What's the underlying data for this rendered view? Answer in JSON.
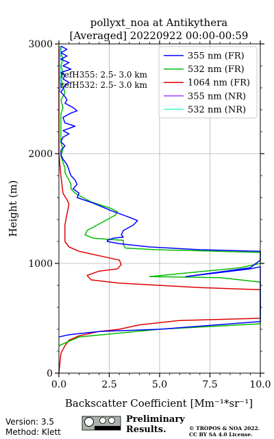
{
  "chart_data": {
    "type": "line",
    "title": "pollyxt_noa at Antikythera",
    "subtitle": "[Averaged] 20220922 00:00-00:59",
    "xlabel": "Backscatter Coefficient [Mm⁻¹*sr⁻¹]",
    "ylabel": "Height (m)",
    "xlim": [
      0,
      10
    ],
    "ylim": [
      0,
      3000
    ],
    "xticks": [
      "0.0",
      "2.5",
      "5.0",
      "7.5",
      "10.0"
    ],
    "yticks": [
      "0",
      "1000",
      "2000",
      "3000"
    ],
    "xtick_values": [
      0,
      2.5,
      5,
      7.5,
      10
    ],
    "ytick_values": [
      0,
      1000,
      2000,
      3000
    ],
    "grid": true,
    "legend_position": "top-right",
    "annotations": [
      "refH355:  2.5- 3.0 km",
      "refH532:  2.5- 3.0 km"
    ],
    "series": [
      {
        "name": "355 nm (FR)",
        "color": "#0000ff",
        "x": [
          0.1,
          0.4,
          0.1,
          0.4,
          0.1,
          0.5,
          0.2,
          0.6,
          0.1,
          0.3,
          0.2,
          0.5,
          0.3,
          0.2,
          0.1,
          0.3,
          0.4,
          0.3,
          0.7,
          0.9,
          0.6,
          0.2,
          0.3,
          0.8,
          0.2,
          0.5,
          0.2,
          0.1,
          0.3,
          0.1,
          0.1,
          0.2,
          0.4,
          0.5,
          0.6,
          0.8,
          0.9,
          0.7,
          1.0,
          0.9,
          1.7,
          2.6,
          3.5,
          3.9,
          3.7,
          3.2,
          3.1,
          3.2,
          2.7,
          2.4,
          2.4,
          3.0,
          4.5,
          7.0,
          10.0,
          10.0,
          9.5,
          6.3,
          9.5,
          10.0,
          10.0,
          10.0,
          10.0,
          10.0,
          5.0,
          2.0,
          0.5,
          0.0
        ],
        "y": [
          2980,
          2950,
          2920,
          2890,
          2860,
          2830,
          2800,
          2770,
          2740,
          2710,
          2680,
          2650,
          2620,
          2590,
          2560,
          2520,
          2490,
          2460,
          2420,
          2390,
          2370,
          2330,
          2280,
          2250,
          2210,
          2180,
          2150,
          2110,
          2070,
          2030,
          1990,
          1950,
          1900,
          1850,
          1800,
          1760,
          1720,
          1680,
          1640,
          1600,
          1550,
          1480,
          1420,
          1390,
          1350,
          1300,
          1260,
          1240,
          1230,
          1210,
          1200,
          1180,
          1150,
          1125,
          1110,
          1030,
          960,
          880,
          950,
          970,
          920,
          880,
          850,
          470,
          400,
          380,
          350,
          330
        ]
      },
      {
        "name": "532 nm (FR)",
        "color": "#00bb00",
        "x": [
          0.1,
          0.1,
          0.2,
          0.1,
          0.2,
          0.1,
          0.2,
          0.3,
          0.1,
          0.2,
          0.1,
          0.1,
          0.1,
          0.1,
          0.1,
          0.2,
          0.1,
          0.2,
          0.3,
          0.3,
          0.4,
          0.5,
          0.6,
          0.6,
          0.8,
          1.6,
          2.6,
          2.9,
          2.8,
          1.9,
          1.4,
          1.3,
          1.7,
          3.2,
          3.2,
          3.3,
          4.8,
          7.0,
          10.0,
          10.0,
          9.0,
          4.5,
          8.0,
          10.0,
          10.0,
          10.0,
          10.0,
          10.0,
          5.0,
          1.0,
          0.0
        ],
        "y": [
          2980,
          2920,
          2860,
          2800,
          2740,
          2680,
          2620,
          2550,
          2490,
          2420,
          2360,
          2300,
          2230,
          2160,
          2100,
          2040,
          1980,
          1920,
          1870,
          1830,
          1790,
          1760,
          1720,
          1680,
          1640,
          1560,
          1500,
          1470,
          1440,
          1350,
          1300,
          1260,
          1230,
          1210,
          1170,
          1140,
          1125,
          1115,
          1100,
          1000,
          960,
          880,
          870,
          830,
          800,
          680,
          540,
          450,
          400,
          330,
          250
        ]
      },
      {
        "name": "1064 nm (FR)",
        "color": "#dd0000",
        "x": [
          0.0,
          0.0,
          0.0,
          0.0,
          0.0,
          0.0,
          0.1,
          0.2,
          0.4,
          0.5,
          0.4,
          0.3,
          0.3,
          0.5,
          1.0,
          2.0,
          3.0,
          3.1,
          2.9,
          2.0,
          1.4,
          1.6,
          3.0,
          5.0,
          7.0,
          10.0,
          10.0,
          10.0,
          10.0,
          6.0,
          4.0,
          3.0,
          2.0,
          1.0,
          0.5,
          0.3,
          0.1,
          0.0
        ],
        "y": [
          2980,
          2800,
          2600,
          2400,
          2200,
          2000,
          1800,
          1640,
          1580,
          1540,
          1450,
          1350,
          1200,
          1150,
          1110,
          1070,
          1030,
          990,
          950,
          930,
          890,
          850,
          820,
          800,
          780,
          760,
          700,
          600,
          500,
          480,
          440,
          400,
          380,
          340,
          300,
          250,
          180,
          0
        ]
      },
      {
        "name": "355 nm (NR)",
        "color": "#a040ff",
        "x": [
          0.05,
          0.08,
          0.03,
          0.07,
          0.05,
          0.09,
          0.04
        ],
        "y": [
          2980,
          2900,
          2820,
          2740,
          2680,
          2620,
          2560
        ]
      },
      {
        "name": "532 nm (NR)",
        "color": "#33ffcc",
        "x": [
          0.04,
          0.06,
          0.03,
          0.05,
          0.07,
          0.04,
          0.05
        ],
        "y": [
          2980,
          2910,
          2830,
          2760,
          2690,
          2630,
          2570
        ]
      }
    ]
  },
  "footer": {
    "version": "Version: 3.5",
    "method": "Method: Klett",
    "preliminary_line1": "Preliminary",
    "preliminary_line2": "Results.",
    "copyright_line1": "© TROPOS & NOA 2022.",
    "copyright_line2": "CC BY SA 4.0 License.",
    "preliminary_color": "#ee3333"
  }
}
